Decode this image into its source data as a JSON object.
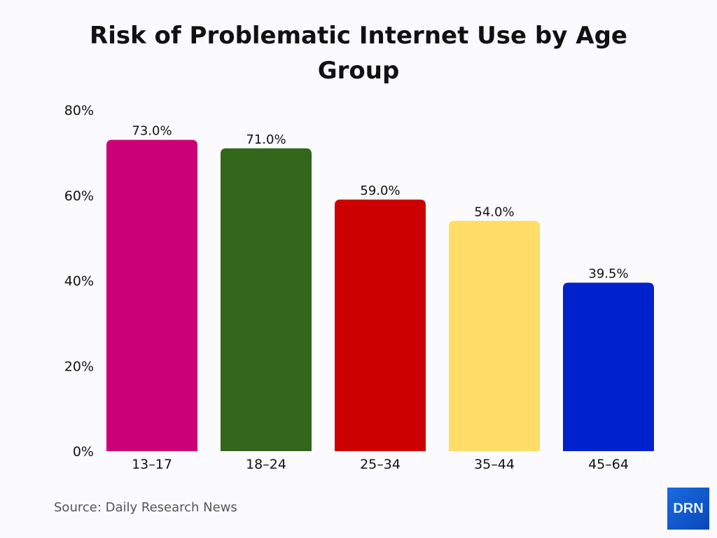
{
  "chart_data": {
    "type": "bar",
    "title": "Risk of Problematic Internet Use by Age Group",
    "categories": [
      "13–17",
      "18–24",
      "25–34",
      "35–44",
      "45–64"
    ],
    "values": [
      73.0,
      71.0,
      59.0,
      54.0,
      39.5
    ],
    "data_labels": [
      "73.0%",
      "71.0%",
      "59.0%",
      "54.0%",
      "39.5%"
    ],
    "colors": [
      "#cc0077",
      "#31661b",
      "#cc0000",
      "#ffdd66",
      "#0022cc"
    ],
    "ylim": [
      0,
      80
    ],
    "yticks": [
      0,
      20,
      40,
      60,
      80
    ],
    "ytick_labels": [
      "0%",
      "20%",
      "40%",
      "60%",
      "80%"
    ],
    "xlabel": "",
    "ylabel": "",
    "grid": false,
    "legend": "none"
  },
  "source": "Source: Daily Research News",
  "logo": "DRN"
}
